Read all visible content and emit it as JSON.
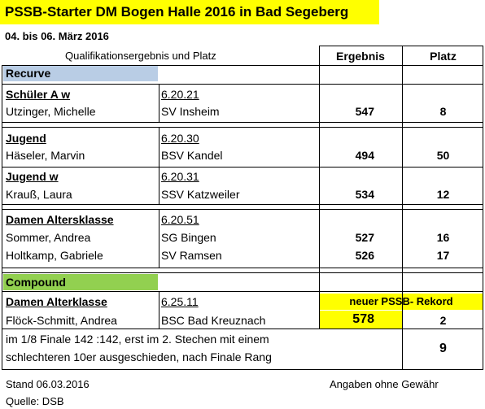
{
  "title": "PSSB-Starter DM Bogen Halle 2016 in Bad Segeberg",
  "dates": "04. bis 06. März 2016",
  "header": {
    "qualification": "Qualifikationsergebnis und Platz",
    "result": "Ergebnis",
    "place": "Platz"
  },
  "sections": {
    "recurve": "Recurve",
    "compound": "Compound"
  },
  "groups": [
    {
      "name": "Schüler A w",
      "code": "6.20.21",
      "rows": [
        {
          "name": "Utzinger, Michelle",
          "club": "SV Insheim",
          "result": "547",
          "place": "8"
        }
      ]
    },
    {
      "name": "Jugend",
      "code": "6.20.30",
      "rows": [
        {
          "name": "Häseler, Marvin",
          "club": "BSV Kandel",
          "result": "494",
          "place": "50"
        }
      ]
    },
    {
      "name": "Jugend w",
      "code": "6.20.31",
      "rows": [
        {
          "name": "Krauß, Laura",
          "club": "SSV Katzweiler",
          "result": "534",
          "place": "12"
        }
      ]
    },
    {
      "name": "Damen Altersklasse",
      "code": "6.20.51",
      "rows": [
        {
          "name": "Sommer, Andrea",
          "club": "SG Bingen",
          "result": "527",
          "place": "16"
        },
        {
          "name": "Holtkamp, Gabriele",
          "club": "SV Ramsen",
          "result": "526",
          "place": "17"
        }
      ]
    },
    {
      "name": "Damen Alterklasse",
      "code": "6.25.11",
      "rows": [
        {
          "name": "Flöck-Schmitt, Andrea",
          "club": "BSC Bad Kreuznach",
          "result": "578",
          "place": "2"
        }
      ]
    }
  ],
  "record": "neuer PSSB- Rekord",
  "final_note": {
    "line1": "im 1/8 Finale  142 :142, erst im 2. Stechen mit einem",
    "line2": "schlechteren 10er ausgeschieden,        nach Finale Rang",
    "place": "9"
  },
  "footer": {
    "stand": "Stand 06.03.2016",
    "source": "Quelle: DSB",
    "disclaimer": "Angaben ohne Gewähr"
  },
  "colors": {
    "title_highlight": "#ffff00",
    "recurve_highlight": "#b9cde5",
    "compound_highlight": "#92d050",
    "record_highlight": "#ffff00"
  }
}
